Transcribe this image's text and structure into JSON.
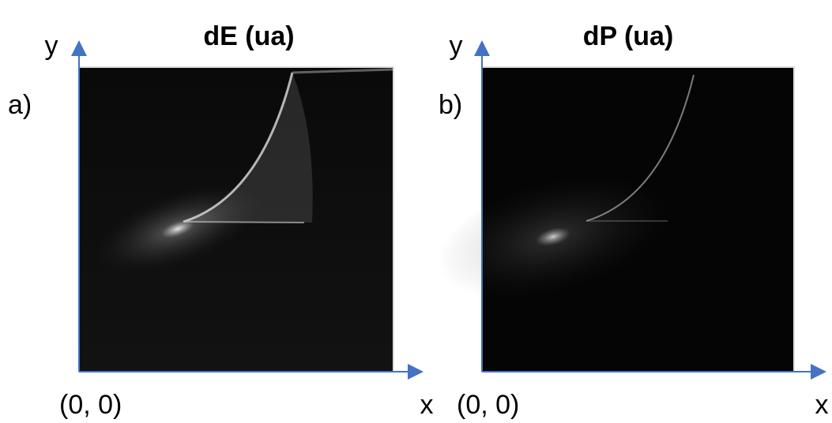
{
  "panels": [
    {
      "label": "a)",
      "title": "dE (ua)",
      "y_axis": "y",
      "x_axis": "x",
      "origin": "(0, 0)"
    },
    {
      "label": "b)",
      "title": "dP (ua)",
      "y_axis": "y",
      "x_axis": "x",
      "origin": "(0, 0)"
    }
  ]
}
